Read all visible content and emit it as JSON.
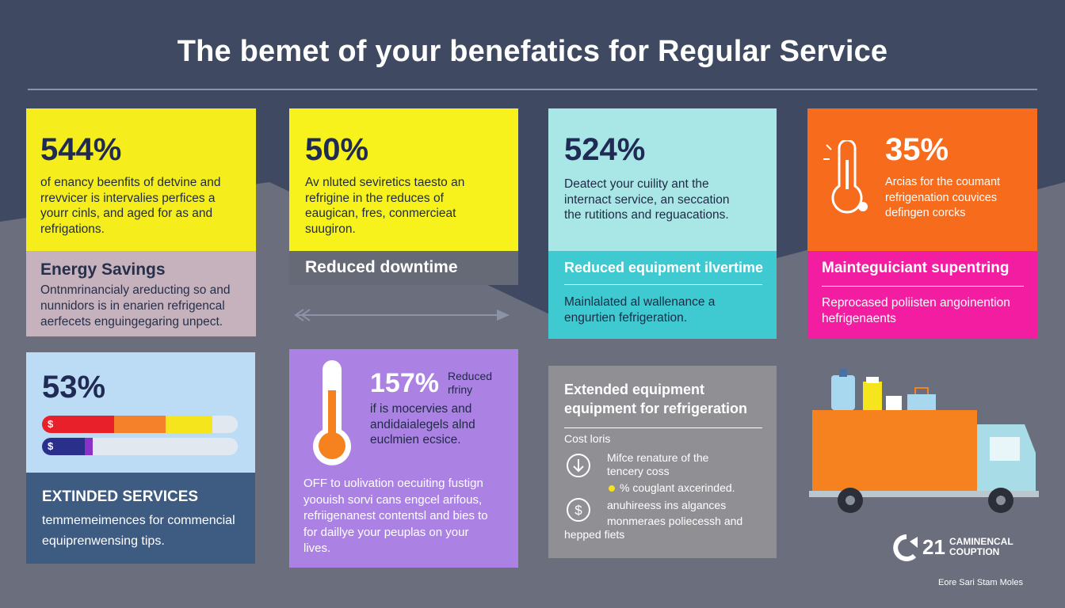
{
  "title": "The bemet of your benefatics for Regular Service",
  "colors": {
    "background": "#3f4a62",
    "lower_background": "#6a6e7d",
    "yellow": "#f6ee1c",
    "cyan_light": "#a9e6e6",
    "cyan": "#3fc9d0",
    "orange": "#f76b1c",
    "magenta": "#f21da0",
    "purple": "#ab82e4",
    "navy": "#3e5b82"
  },
  "cards": {
    "energy": {
      "stat": "544%",
      "body": [
        "of enancy beenfits of detvine and",
        "rrevvicer is intervalies perfices a",
        "yourr cinls, and aged for as and",
        "refrigations."
      ],
      "band_title": "Energy Savings",
      "band_text": [
        "Ontnmrinancialy areducting so and",
        "nunnidors is in enarien refrigencal",
        "aerfecets enguingegaring unpect."
      ]
    },
    "downtime": {
      "stat": "50%",
      "body": [
        "Av nluted seviretics taesto an",
        "refrigine in the reduces of",
        "eaugican, fres, conmercieat",
        "suugiron."
      ],
      "band_title": "Reduced downtime"
    },
    "equipment": {
      "stat": "524%",
      "body": [
        "Deatect your cuility ant the",
        "internact service, an seccation",
        "the rutitions and reguacations."
      ],
      "band_title": "Reduced equipment ilvertime",
      "band_text": [
        "Mainlalated al wallenance a",
        "engurtien fefrigeration."
      ]
    },
    "maintenance": {
      "stat": "35%",
      "icon": "thermometer-icon",
      "body": [
        "Arcias for the coumant",
        "refrigenation couvices",
        "defingen corcks"
      ],
      "band_title": "Mainteguiciant supentring",
      "band_text": [
        "Reprocased poliisten angoinention",
        "hefrigenaents"
      ]
    },
    "extended": {
      "stat": "53%",
      "bars": [
        {
          "label": "$",
          "segments": [
            {
              "color": "#e8202a",
              "fraction": 0.37
            },
            {
              "color": "#f5822a",
              "fraction": 0.26
            },
            {
              "color": "#f5e51c",
              "fraction": 0.24
            },
            {
              "color": "#e2e8ef",
              "fraction": 0.13
            }
          ]
        },
        {
          "label": "$",
          "segments": [
            {
              "color": "#2b2f8c",
              "fraction": 0.22
            },
            {
              "color": "#8a32c8",
              "fraction": 0.04
            },
            {
              "color": "#e2e8ef",
              "fraction": 0.74
            }
          ]
        }
      ],
      "band_title": "EXTINDED SERVICES",
      "band_text": [
        "temmemeimences for commencial",
        "equiprenwensing tips."
      ]
    },
    "reduced": {
      "stat": "157%",
      "stat_label": [
        "Reduced",
        "rfriny"
      ],
      "icon": "thermometer-icon",
      "body": [
        "if is mocervies and",
        "andidaialegels alnd",
        "euclmien ecsice."
      ],
      "footer": [
        "OFF to uolivation oecuiting fustign",
        "yoouish sorvi cans engcel arifous,",
        "refriigenanest contentsl and bies to",
        "for daillye your peuplas on your",
        "lives."
      ]
    },
    "costs": {
      "title": [
        "Extended equipment",
        "equipment for refrigeration"
      ],
      "subtitle": "Cost loris",
      "items": [
        {
          "icon": "down-arrow-circle-icon",
          "lines": [
            "Mifce renature of the",
            "tencery coss"
          ]
        },
        {
          "icon": "yellow-dot-icon",
          "lines": [
            "% couglant axcerinded."
          ]
        },
        {
          "icon": "dollar-circle-icon",
          "lines": [
            "anuhireess ins algances",
            "monmeraes poliecessh and"
          ]
        }
      ],
      "footer": "hepped fiets"
    }
  },
  "truck": {
    "icon": "delivery-truck-icon"
  },
  "logo": {
    "mark": "21",
    "line1": "CAMINENCAL",
    "line2": "COUPTION"
  },
  "footer": "Eore Sari Stam Moles"
}
